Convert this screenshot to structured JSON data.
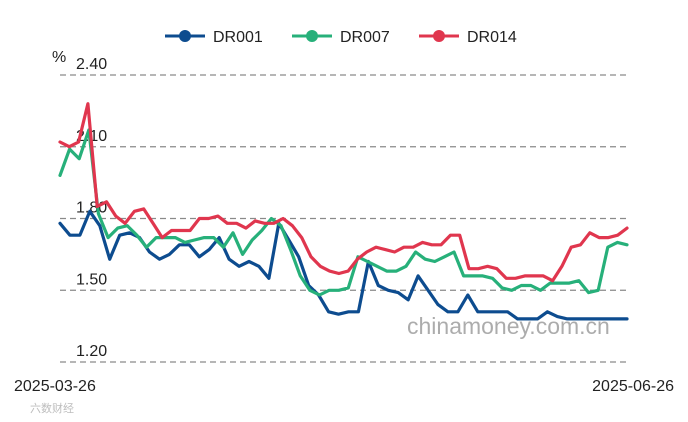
{
  "chart_data": {
    "type": "line",
    "unit": "%",
    "yticks": [
      1.2,
      1.5,
      1.8,
      2.1,
      2.4
    ],
    "ylim": [
      1.2,
      2.4
    ],
    "grid": true,
    "legend_position": "top-center",
    "x_start_label": "2025-03-26",
    "x_end_label": "2025-06-26",
    "watermark": "chinamoney.com.cn",
    "corner_mark": "六数财经",
    "series": [
      {
        "name": "DR001",
        "color": "#0d4c8f",
        "values": [
          1.78,
          1.73,
          1.73,
          1.83,
          1.77,
          1.63,
          1.73,
          1.74,
          1.72,
          1.66,
          1.63,
          1.65,
          1.69,
          1.69,
          1.64,
          1.67,
          1.72,
          1.63,
          1.6,
          1.62,
          1.6,
          1.55,
          1.78,
          1.71,
          1.64,
          1.52,
          1.48,
          1.41,
          1.4,
          1.41,
          1.41,
          1.62,
          1.52,
          1.5,
          1.49,
          1.46,
          1.56,
          1.5,
          1.44,
          1.41,
          1.41,
          1.48,
          1.41,
          1.41,
          1.41,
          1.41,
          1.38,
          1.38,
          1.38,
          1.41,
          1.39,
          1.38,
          1.38,
          1.38,
          1.38,
          1.38,
          1.38,
          1.38
        ]
      },
      {
        "name": "DR007",
        "color": "#27b07a",
        "values": [
          1.98,
          2.09,
          2.05,
          2.17,
          1.82,
          1.72,
          1.76,
          1.77,
          1.73,
          1.68,
          1.72,
          1.72,
          1.72,
          1.7,
          1.71,
          1.72,
          1.72,
          1.68,
          1.74,
          1.65,
          1.71,
          1.75,
          1.8,
          1.77,
          1.67,
          1.56,
          1.5,
          1.48,
          1.5,
          1.5,
          1.51,
          1.64,
          1.62,
          1.6,
          1.58,
          1.58,
          1.6,
          1.66,
          1.63,
          1.62,
          1.64,
          1.66,
          1.56,
          1.56,
          1.56,
          1.55,
          1.51,
          1.5,
          1.52,
          1.52,
          1.5,
          1.53,
          1.53,
          1.53,
          1.54,
          1.49,
          1.5,
          1.68,
          1.7,
          1.69
        ]
      },
      {
        "name": "DR014",
        "color": "#e0364e",
        "values": [
          2.12,
          2.1,
          2.12,
          2.28,
          1.85,
          1.87,
          1.81,
          1.78,
          1.83,
          1.84,
          1.78,
          1.72,
          1.75,
          1.75,
          1.75,
          1.8,
          1.8,
          1.81,
          1.78,
          1.78,
          1.76,
          1.79,
          1.78,
          1.78,
          1.8,
          1.77,
          1.72,
          1.64,
          1.6,
          1.58,
          1.57,
          1.58,
          1.63,
          1.66,
          1.68,
          1.67,
          1.66,
          1.68,
          1.68,
          1.7,
          1.69,
          1.69,
          1.73,
          1.73,
          1.59,
          1.59,
          1.6,
          1.59,
          1.55,
          1.55,
          1.56,
          1.56,
          1.56,
          1.54,
          1.6,
          1.68,
          1.69,
          1.74,
          1.72,
          1.72,
          1.73,
          1.76
        ]
      }
    ]
  }
}
